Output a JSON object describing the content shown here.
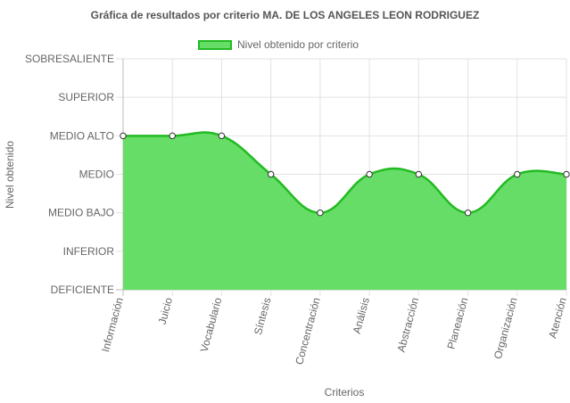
{
  "chart_data": {
    "type": "area",
    "title": "Gráfica de resultados por criterio MA. DE LOS ANGELES LEON RODRIGUEZ",
    "xlabel": "Criterios",
    "ylabel": "Nivel obtenido",
    "y_levels": [
      "DEFICIENTE",
      "INFERIOR",
      "MEDIO BAJO",
      "MEDIO",
      "MEDIO ALTO",
      "SUPERIOR",
      "SOBRESALIENTE"
    ],
    "ylim": [
      0,
      6
    ],
    "categories": [
      "Información",
      "Juicio",
      "Vocabulario",
      "Síntesis",
      "Concentración",
      "Análisis",
      "Abstracción",
      "Planeación",
      "Organización",
      "Atención"
    ],
    "series": [
      {
        "name": "Nivel obtenido por criterio",
        "values": [
          4,
          4,
          4,
          3,
          2,
          3,
          3,
          2,
          3,
          3
        ],
        "fill": "#66dd66",
        "stroke": "#22bb22"
      }
    ],
    "grid": true,
    "legend": "top"
  }
}
